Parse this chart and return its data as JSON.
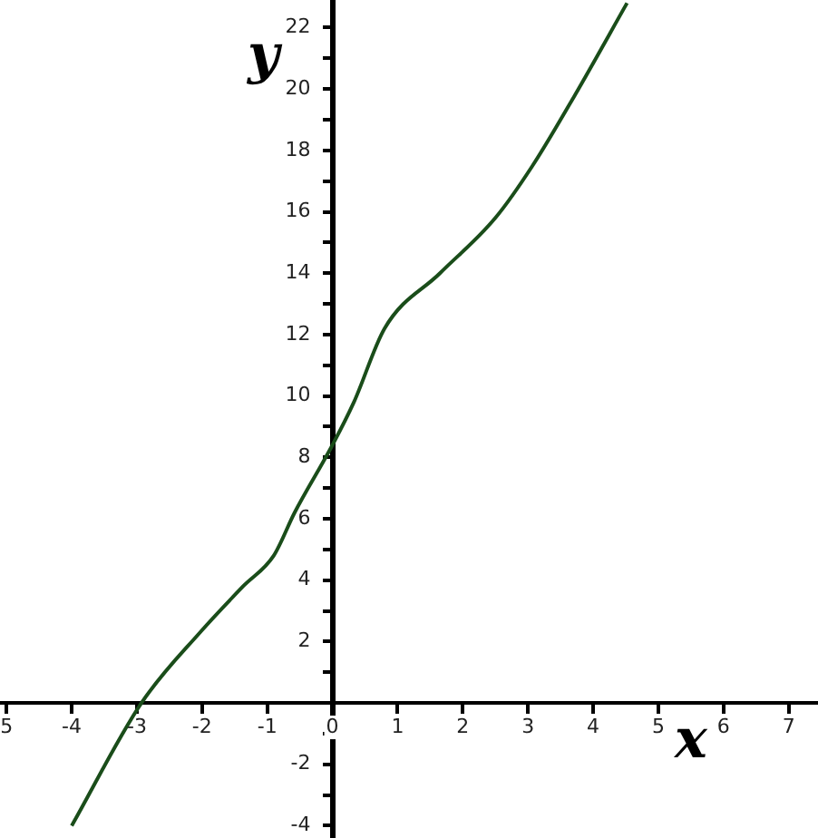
{
  "chart_data": {
    "type": "line",
    "xlabel": "x",
    "ylabel": "y",
    "x": [
      -4.0,
      -2.93,
      -2.03,
      -1.37,
      -0.9,
      -0.58,
      0,
      0.33,
      0.8,
      1.65,
      2.5,
      3.07,
      3.72,
      4.52
    ],
    "series": [
      {
        "color": "#1a4d1a",
        "values": [
          -4.0,
          0,
          2.3,
          3.8,
          4.8,
          6.2,
          8.4,
          9.8,
          12.2,
          14.0,
          15.8,
          17.5,
          19.8,
          22.8
        ]
      }
    ],
    "xlim": [
      -5.1,
      7.45
    ],
    "ylim": [
      -4.4,
      22.9
    ],
    "xticks": [
      {
        "value": -5,
        "label": "5"
      },
      -4,
      -3,
      -2,
      -1,
      {
        "value": 0,
        "label": "0"
      },
      1,
      2,
      3,
      4,
      5,
      6,
      7
    ],
    "yticks": [
      -4,
      -2,
      2,
      4,
      6,
      8,
      10,
      12,
      14,
      16,
      18,
      20,
      22,
      {
        "value": -3,
        "label": null
      },
      {
        "value": -1,
        "label": null
      },
      {
        "value": 1,
        "label": null
      },
      {
        "value": 3,
        "label": null
      },
      {
        "value": 5,
        "label": null
      },
      {
        "value": 7,
        "label": null
      },
      {
        "value": 9,
        "label": null
      },
      {
        "value": 11,
        "label": null
      },
      {
        "value": 13,
        "label": null
      },
      {
        "value": 15,
        "label": null
      },
      {
        "value": 17,
        "label": null
      },
      {
        "value": 19,
        "label": null
      },
      {
        "value": 21,
        "label": null
      }
    ],
    "grid": false,
    "legend": false,
    "marker": "none",
    "line_style": "solid"
  }
}
